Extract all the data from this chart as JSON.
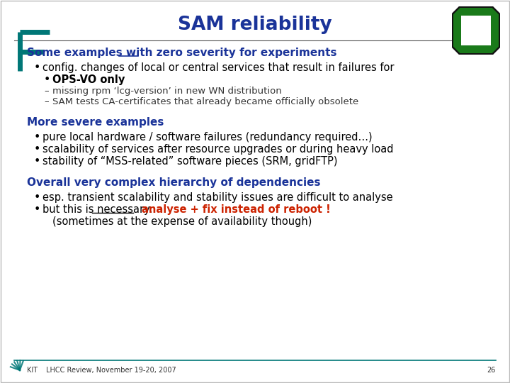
{
  "title": "SAM reliability",
  "title_color": "#1a3399",
  "title_fontsize": 19,
  "bg_color": "#ffffff",
  "footer_text": "LHCC Review, November 19-20, 2007",
  "footer_page": "26",
  "bracket_color": "#007777",
  "logo_outer_color": "#111111",
  "logo_green_color": "#1a7a1a",
  "logo_white_color": "#ffffff",
  "text_color": "#000000",
  "heading_color": "#1a3399",
  "sub_text_color": "#333333",
  "red_text_color": "#cc2200",
  "sections": [
    {
      "heading": "Some examples with zero severity for experiments",
      "heading_underline": "zero",
      "bullets": [
        {
          "level": 1,
          "text": "config. changes of local or central services that result in failures for",
          "color": "#000000"
        },
        {
          "level": 1,
          "text": "OPS-VO only",
          "color": "#000000",
          "bold": true,
          "indent_extra": 14
        },
        {
          "level": 2,
          "text": "missing rpm ‘lcg-version’ in new WN distribution",
          "color": "#333333"
        },
        {
          "level": 2,
          "text": "SAM tests CA-certificates that already became officially obsolete",
          "color": "#333333"
        }
      ]
    },
    {
      "heading": "More severe examples",
      "heading_underline": null,
      "bullets": [
        {
          "level": 1,
          "text": "pure local hardware / software failures (redundancy required…)",
          "color": "#000000"
        },
        {
          "level": 1,
          "text": "scalability of services after resource upgrades or during heavy load",
          "color": "#000000"
        },
        {
          "level": 1,
          "text": "stability of “MSS-related” software pieces (SRM, gridFTP)",
          "color": "#000000"
        }
      ]
    },
    {
      "heading": "Overall very complex hierarchy of dependencies",
      "heading_underline": null,
      "bullets": [
        {
          "level": 1,
          "text": "esp. transient scalability and stability issues are difficult to analyse",
          "color": "#000000"
        },
        {
          "level": 1,
          "text": "but this is necessary:  ",
          "color": "#000000",
          "append_red": "analyse + fix instead of reboot !",
          "underline_word": "necessary:"
        },
        {
          "level": 1,
          "text": "(sometimes at the expense of availability though)",
          "color": "#000000",
          "indent_extra": 14,
          "no_bullet": true
        }
      ]
    }
  ]
}
